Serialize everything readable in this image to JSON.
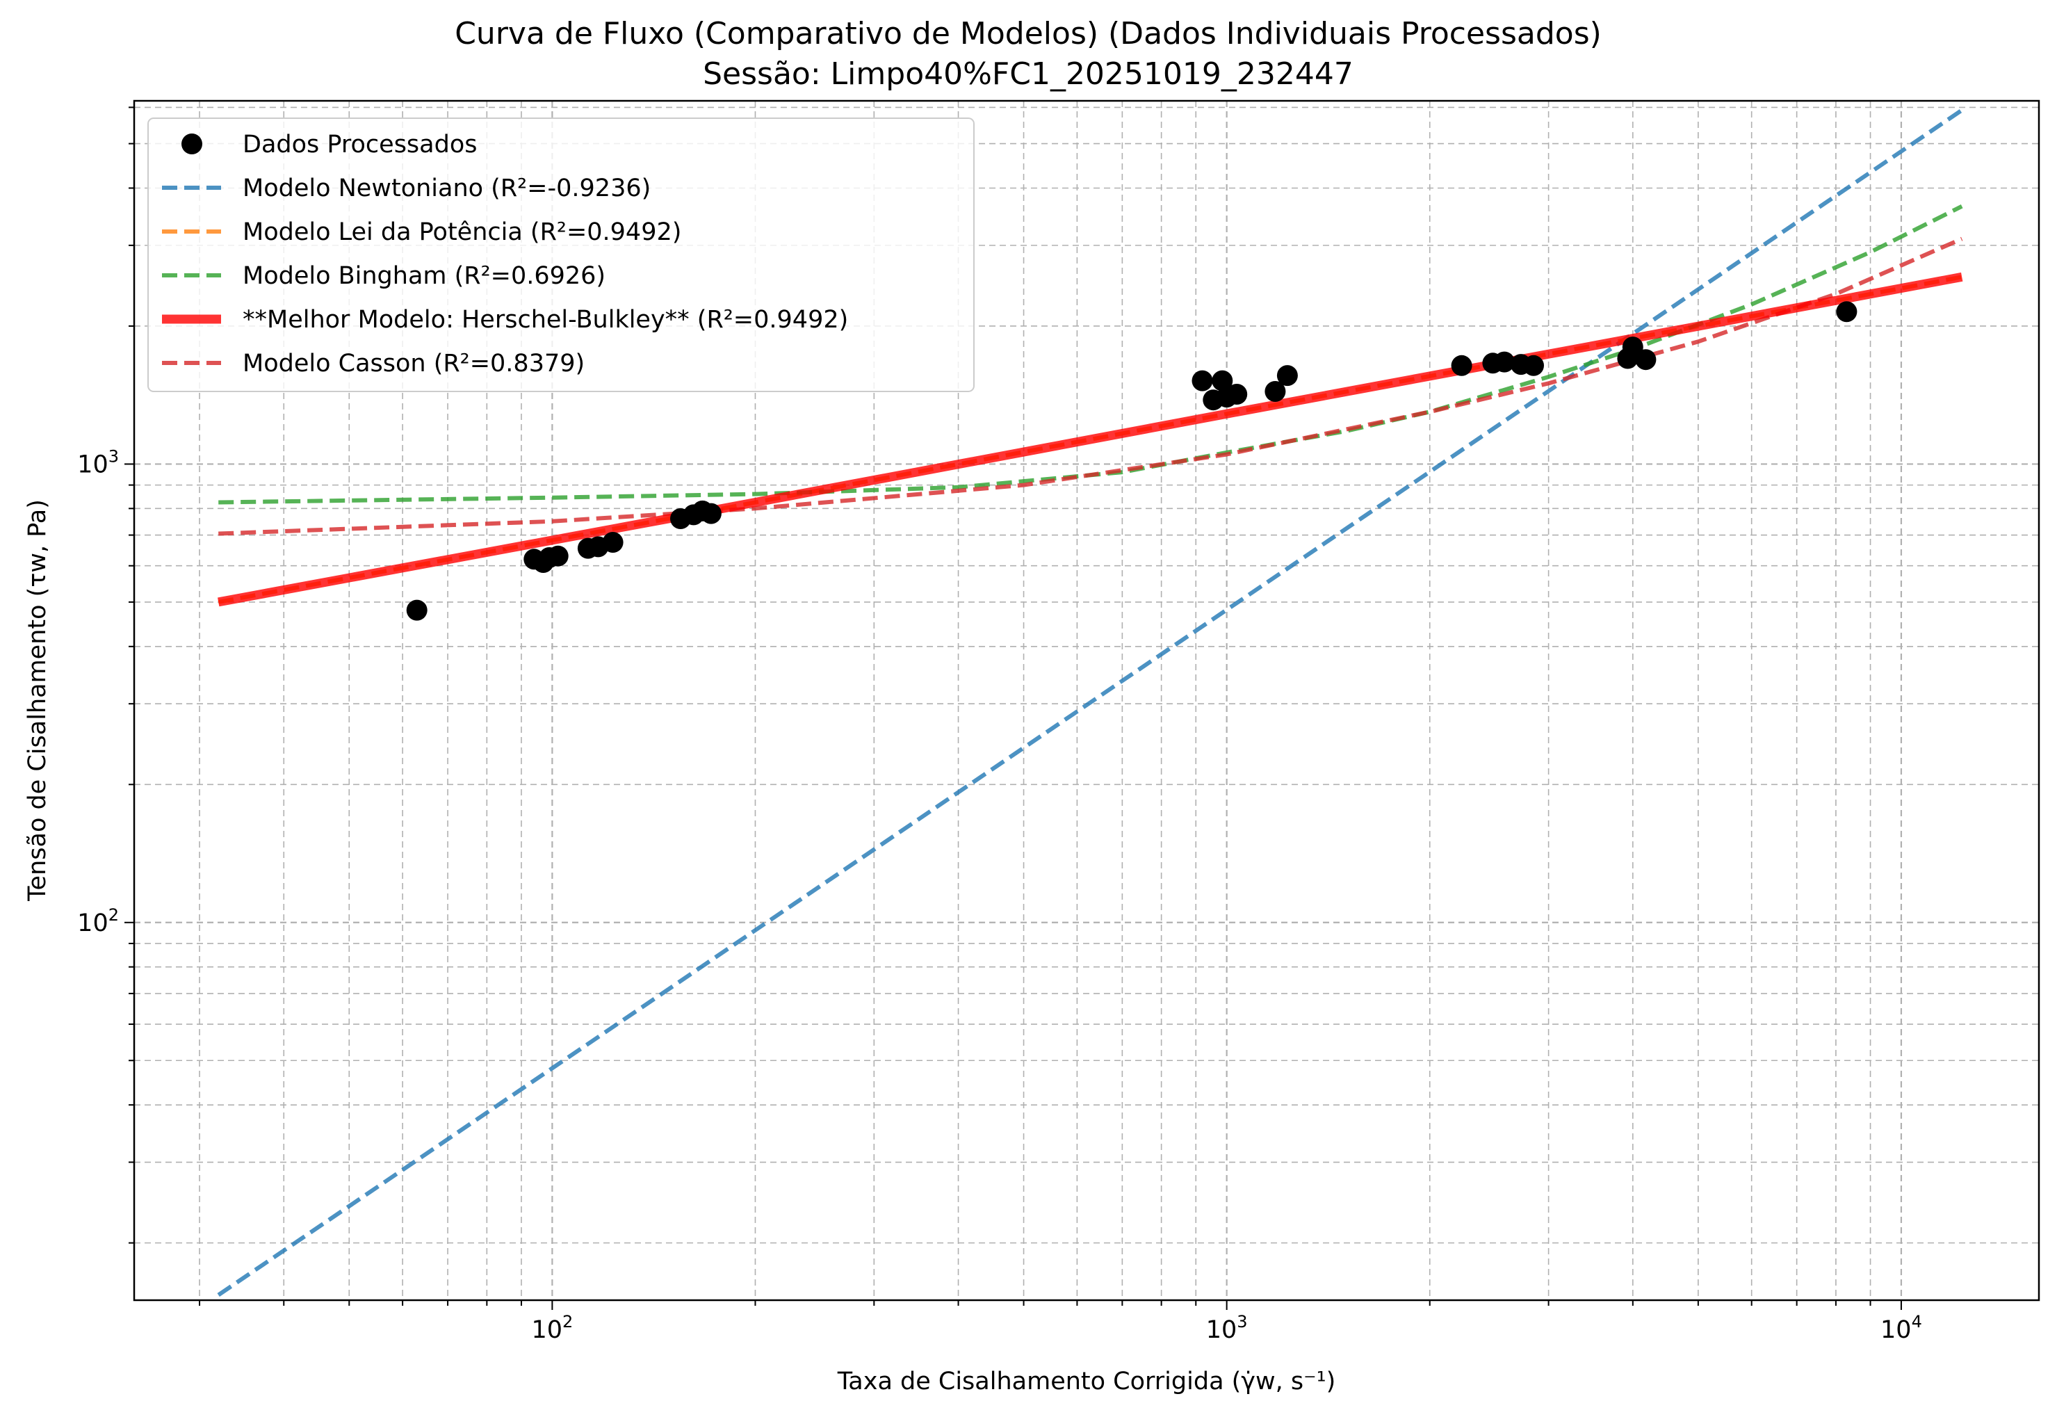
{
  "chart_data": {
    "type": "scatter",
    "title": "Curva de Fluxo (Comparativo de Modelos) (Dados Individuais Processados)",
    "subtitle": "Sessão: Limpo40%FC1_20251019_232447",
    "xlabel": "Taxa de Cisalhamento Corrigida (γ̇w, s⁻¹)",
    "ylabel": "Tensão de Cisalhamento (τw, Pa)",
    "xscale": "log",
    "yscale": "log",
    "xlim": [
      24,
      16000
    ],
    "ylim": [
      15,
      6200
    ],
    "grid": true,
    "legend_position": "upper-left",
    "x_ticks": [
      {
        "value": 100,
        "base": "10",
        "exp": "2"
      },
      {
        "value": 1000,
        "base": "10",
        "exp": "3"
      },
      {
        "value": 10000,
        "base": "10",
        "exp": "4"
      }
    ],
    "y_ticks": [
      {
        "value": 100,
        "base": "10",
        "exp": "2"
      },
      {
        "value": 1000,
        "base": "10",
        "exp": "3"
      }
    ],
    "series": [
      {
        "name": "Dados Processados",
        "kind": "scatter",
        "color": "#000000",
        "points": [
          [
            63,
            480
          ],
          [
            94,
            620
          ],
          [
            97,
            610
          ],
          [
            99,
            625
          ],
          [
            102,
            630
          ],
          [
            113,
            655
          ],
          [
            117,
            660
          ],
          [
            123,
            675
          ],
          [
            155,
            760
          ],
          [
            162,
            775
          ],
          [
            167,
            790
          ],
          [
            172,
            780
          ],
          [
            920,
            1520
          ],
          [
            955,
            1380
          ],
          [
            985,
            1520
          ],
          [
            1000,
            1400
          ],
          [
            1035,
            1420
          ],
          [
            1180,
            1440
          ],
          [
            1230,
            1560
          ],
          [
            2230,
            1640
          ],
          [
            2480,
            1660
          ],
          [
            2580,
            1670
          ],
          [
            2730,
            1650
          ],
          [
            2850,
            1640
          ],
          [
            3930,
            1700
          ],
          [
            4000,
            1800
          ],
          [
            4180,
            1690
          ],
          [
            8300,
            2150
          ]
        ]
      },
      {
        "name": "Modelo Newtoniano (R²=-0.9236)",
        "kind": "line",
        "style": "dashed",
        "color": "#1f77b4",
        "points": [
          [
            32,
            15.4
          ],
          [
            120,
            57.7
          ],
          [
            1000,
            481
          ],
          [
            5000,
            2405
          ],
          [
            12300,
            5916
          ]
        ]
      },
      {
        "name": "Modelo Lei da Potência (R²=0.9492)",
        "kind": "line",
        "style": "dashed",
        "color": "#ff7f0e",
        "points": [
          [
            32,
            500
          ],
          [
            150,
            762
          ],
          [
            1000,
            1287
          ],
          [
            4000,
            1880
          ],
          [
            12300,
            2560
          ]
        ]
      },
      {
        "name": "Modelo Bingham (R²=0.6926)",
        "kind": "line",
        "style": "dashed",
        "color": "#2ca02c",
        "points": [
          [
            32,
            825
          ],
          [
            100,
            845
          ],
          [
            200,
            860
          ],
          [
            400,
            890
          ],
          [
            700,
            960
          ],
          [
            1000,
            1060
          ],
          [
            1500,
            1180
          ],
          [
            2000,
            1300
          ],
          [
            3000,
            1550
          ],
          [
            4000,
            1780
          ],
          [
            6000,
            2230
          ],
          [
            9000,
            2900
          ],
          [
            12300,
            3650
          ]
        ]
      },
      {
        "name": "**Melhor Modelo: Herschel-Bulkley** (R²=0.9492)",
        "kind": "line",
        "style": "solid",
        "color": "#ff0000",
        "points": [
          [
            32,
            500
          ],
          [
            150,
            762
          ],
          [
            1000,
            1287
          ],
          [
            4000,
            1880
          ],
          [
            12300,
            2560
          ]
        ]
      },
      {
        "name": "Modelo Casson (R²=0.8379)",
        "kind": "line",
        "style": "dashed",
        "color": "#d62728",
        "points": [
          [
            32,
            705
          ],
          [
            100,
            750
          ],
          [
            200,
            800
          ],
          [
            500,
            900
          ],
          [
            1000,
            1050
          ],
          [
            2000,
            1300
          ],
          [
            3000,
            1500
          ],
          [
            5000,
            1850
          ],
          [
            8000,
            2350
          ],
          [
            12300,
            3100
          ]
        ]
      }
    ]
  }
}
